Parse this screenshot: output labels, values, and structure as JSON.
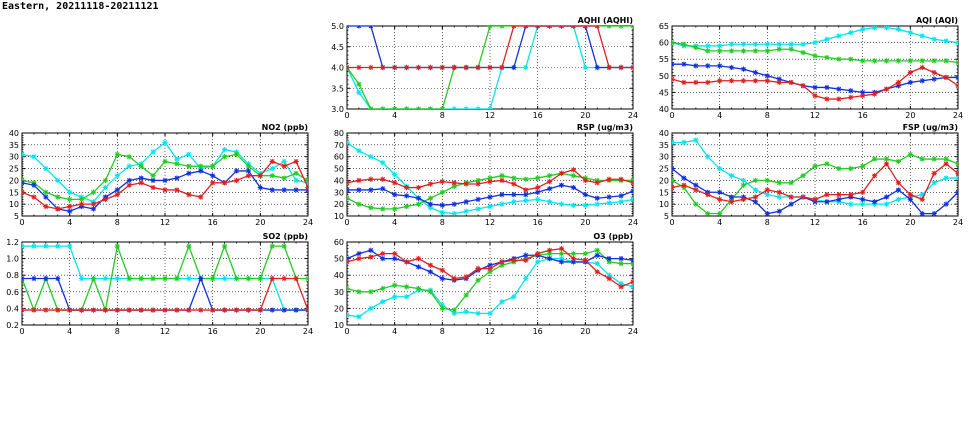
{
  "page_title": "Eastern, 20211118-20211121",
  "colors": {
    "cyan": "#00e5ee",
    "green": "#22cc22",
    "blue": "#1030e0",
    "red": "#e02020"
  },
  "chart_data": [
    {
      "id": "aqhi",
      "type": "line",
      "title": "AQHI (AQHI)",
      "xlim": [
        0,
        24
      ],
      "ylim": [
        3.0,
        5.0
      ],
      "xticks": [
        "0",
        "4",
        "8",
        "12",
        "16",
        "20",
        "24"
      ],
      "yticks": [
        "3.0",
        "3.5",
        "4.0",
        "4.5",
        "5.0"
      ],
      "grid": true,
      "x": [
        0,
        1,
        2,
        3,
        4,
        5,
        6,
        7,
        8,
        9,
        10,
        11,
        12,
        13,
        14,
        15,
        16,
        17,
        18,
        19,
        20,
        21,
        22,
        23,
        24
      ],
      "series": [
        {
          "color": "cyan",
          "values": [
            4,
            3.4,
            3,
            3,
            3,
            3,
            3,
            3,
            3,
            3,
            3,
            3,
            3,
            4,
            4,
            4,
            5,
            5,
            5,
            5,
            4,
            4,
            4,
            4,
            4
          ]
        },
        {
          "color": "green",
          "values": [
            4,
            3.6,
            3,
            3,
            3,
            3,
            3,
            3,
            3,
            4,
            4,
            4,
            5,
            5,
            5,
            5,
            5,
            5,
            5,
            5,
            5,
            5,
            5,
            5,
            5
          ]
        },
        {
          "color": "blue",
          "values": [
            5,
            5,
            5,
            4,
            4,
            4,
            4,
            4,
            4,
            4,
            4,
            4,
            4,
            4,
            4,
            5,
            5,
            5,
            5,
            5,
            5,
            4,
            4,
            4,
            4
          ]
        },
        {
          "color": "red",
          "values": [
            4,
            4,
            4,
            4,
            4,
            4,
            4,
            4,
            4,
            4,
            4,
            4,
            4,
            4,
            5,
            5,
            5,
            5,
            5,
            5,
            5,
            5,
            4,
            4,
            4
          ]
        }
      ]
    },
    {
      "id": "aqi",
      "type": "line",
      "title": "AQI (AQI)",
      "xlim": [
        0,
        24
      ],
      "ylim": [
        40,
        65
      ],
      "xticks": [
        "0",
        "4",
        "8",
        "12",
        "16",
        "20",
        "24"
      ],
      "yticks": [
        "40",
        "45",
        "50",
        "55",
        "60",
        "65"
      ],
      "grid": true,
      "x": [
        0,
        1,
        2,
        3,
        4,
        5,
        6,
        7,
        8,
        9,
        10,
        11,
        12,
        13,
        14,
        15,
        16,
        17,
        18,
        19,
        20,
        21,
        22,
        23,
        24
      ],
      "series": [
        {
          "color": "cyan",
          "values": [
            60,
            59,
            59,
            59,
            59,
            59.5,
            59.5,
            59.5,
            59.5,
            59.5,
            59.5,
            59.5,
            60,
            61,
            62,
            63,
            64,
            64.5,
            64.5,
            64,
            63,
            62,
            61,
            60.5,
            60
          ]
        },
        {
          "color": "green",
          "values": [
            60,
            59.5,
            58.5,
            57.5,
            57.5,
            57.5,
            57.5,
            57.5,
            57.5,
            58,
            58,
            57,
            56,
            55.5,
            55,
            55,
            54.5,
            54.5,
            54.5,
            54.5,
            54.5,
            54.5,
            54.5,
            54.5,
            54
          ]
        },
        {
          "color": "blue",
          "values": [
            53.5,
            53.5,
            53,
            53,
            53,
            52.5,
            52,
            51,
            50,
            49,
            48,
            47,
            46.5,
            46.5,
            46,
            45.5,
            45,
            45,
            46,
            47,
            48,
            48.5,
            49,
            49.5,
            49.5
          ]
        },
        {
          "color": "red",
          "values": [
            49,
            48,
            48,
            48,
            48.5,
            48.5,
            48.5,
            48.5,
            48.5,
            48,
            48,
            47,
            44,
            43,
            43,
            43.5,
            44,
            44.5,
            46,
            48,
            51,
            52.5,
            51,
            49.5,
            47
          ]
        }
      ]
    },
    {
      "id": "no2",
      "type": "line",
      "title": "NO2 (ppb)",
      "xlim": [
        0,
        24
      ],
      "ylim": [
        5,
        40
      ],
      "xticks": [
        "0",
        "4",
        "8",
        "12",
        "16",
        "20",
        "24"
      ],
      "yticks": [
        "5",
        "10",
        "15",
        "20",
        "25",
        "30",
        "35",
        "40"
      ],
      "grid": true,
      "x": [
        0,
        1,
        2,
        3,
        4,
        5,
        6,
        7,
        8,
        9,
        10,
        11,
        12,
        13,
        14,
        15,
        16,
        17,
        18,
        19,
        20,
        21,
        22,
        23,
        24
      ],
      "series": [
        {
          "color": "cyan",
          "values": [
            31,
            30,
            25,
            20,
            15,
            13,
            11,
            17,
            22,
            26,
            27,
            32,
            36,
            29,
            31,
            25,
            26,
            33,
            32,
            27,
            23,
            25,
            28,
            20,
            19
          ]
        },
        {
          "color": "green",
          "values": [
            20,
            19,
            15,
            13,
            12,
            12,
            15,
            20,
            31,
            30,
            26,
            22,
            28,
            27,
            26,
            26,
            26,
            30,
            31,
            26,
            22,
            22,
            21,
            23,
            20
          ]
        },
        {
          "color": "blue",
          "values": [
            19,
            18,
            13,
            8,
            7,
            9,
            8,
            13,
            16,
            20,
            21,
            20,
            20,
            21,
            23,
            24,
            22,
            19,
            24,
            24,
            17,
            16,
            16,
            16,
            16
          ]
        },
        {
          "color": "red",
          "values": [
            15,
            13,
            9,
            8,
            9,
            10,
            10,
            12,
            14,
            18,
            19,
            17,
            16,
            16,
            14,
            13,
            19,
            19,
            20,
            22,
            22,
            28,
            26,
            28,
            17
          ]
        }
      ]
    },
    {
      "id": "rsp",
      "type": "line",
      "title": "RSP (ug/m3)",
      "xlim": [
        0,
        24
      ],
      "ylim": [
        10,
        80
      ],
      "xticks": [
        "0",
        "4",
        "8",
        "12",
        "16",
        "20",
        "24"
      ],
      "yticks": [
        "10",
        "20",
        "30",
        "40",
        "50",
        "60",
        "70",
        "80"
      ],
      "grid": true,
      "x": [
        0,
        1,
        2,
        3,
        4,
        5,
        6,
        7,
        8,
        9,
        10,
        11,
        12,
        13,
        14,
        15,
        16,
        17,
        18,
        19,
        20,
        21,
        22,
        23,
        24
      ],
      "series": [
        {
          "color": "cyan",
          "values": [
            72,
            65,
            60,
            55,
            45,
            35,
            25,
            17,
            13,
            12,
            14,
            16,
            18,
            20,
            22,
            23,
            24,
            22,
            20,
            19,
            19,
            20,
            21,
            22,
            24
          ]
        },
        {
          "color": "green",
          "values": [
            25,
            20,
            17,
            16,
            16,
            18,
            20,
            25,
            30,
            35,
            38,
            40,
            42,
            44,
            42,
            41,
            42,
            44,
            46,
            44,
            42,
            40,
            40,
            40,
            40
          ]
        },
        {
          "color": "blue",
          "values": [
            32,
            32,
            32,
            33,
            28,
            27,
            25,
            20,
            19,
            20,
            22,
            24,
            26,
            28,
            28,
            28,
            30,
            33,
            36,
            34,
            28,
            25,
            26,
            27,
            31
          ]
        },
        {
          "color": "red",
          "values": [
            38,
            40,
            41,
            41,
            38,
            34,
            34,
            37,
            39,
            38,
            37,
            37,
            39,
            40,
            37,
            32,
            34,
            39,
            46,
            49,
            40,
            38,
            41,
            41,
            38
          ]
        }
      ]
    },
    {
      "id": "fsp",
      "type": "line",
      "title": "FSP (ug/m3)",
      "xlim": [
        0,
        24
      ],
      "ylim": [
        5,
        40
      ],
      "xticks": [
        "0",
        "4",
        "8",
        "12",
        "16",
        "20",
        "24"
      ],
      "yticks": [
        "5",
        "10",
        "15",
        "20",
        "25",
        "30",
        "35",
        "40"
      ],
      "grid": true,
      "x": [
        0,
        1,
        2,
        3,
        4,
        5,
        6,
        7,
        8,
        9,
        10,
        11,
        12,
        13,
        14,
        15,
        16,
        17,
        18,
        19,
        20,
        21,
        22,
        23,
        24
      ],
      "series": [
        {
          "color": "cyan",
          "values": [
            36,
            36,
            37,
            30,
            25,
            22,
            20,
            16,
            14,
            13,
            13,
            13,
            12,
            11,
            11,
            10,
            10,
            10,
            10,
            12,
            13,
            14,
            19,
            21,
            21
          ]
        },
        {
          "color": "green",
          "values": [
            20,
            17,
            10,
            6,
            6,
            12,
            18,
            20,
            20,
            19,
            19,
            22,
            26,
            27,
            25,
            25,
            26,
            29,
            29,
            28,
            31,
            29,
            29,
            29,
            27
          ]
        },
        {
          "color": "blue",
          "values": [
            25,
            21,
            18,
            15,
            15,
            13,
            13,
            11,
            6,
            7,
            10,
            13,
            11,
            11,
            12,
            13,
            12,
            11,
            13,
            16,
            12,
            6,
            6,
            10,
            15
          ]
        },
        {
          "color": "red",
          "values": [
            17,
            18,
            16,
            14,
            12,
            11,
            12,
            13,
            16,
            15,
            13,
            13,
            12,
            14,
            14,
            14,
            15,
            22,
            27,
            19,
            14,
            12,
            23,
            27,
            23
          ]
        }
      ]
    },
    {
      "id": "so2",
      "type": "line",
      "title": "SO2 (ppb)",
      "xlim": [
        0,
        24
      ],
      "ylim": [
        0.2,
        1.2
      ],
      "xticks": [
        "0",
        "4",
        "8",
        "12",
        "16",
        "20",
        "24"
      ],
      "yticks": [
        "0.2",
        "0.4",
        "0.6",
        "0.8",
        "1.0",
        "1.2"
      ],
      "grid": true,
      "x": [
        0,
        1,
        2,
        3,
        4,
        5,
        6,
        7,
        8,
        9,
        10,
        11,
        12,
        13,
        14,
        15,
        16,
        17,
        18,
        19,
        20,
        21,
        22,
        23,
        24
      ],
      "series": [
        {
          "color": "cyan",
          "values": [
            1.15,
            1.15,
            1.15,
            1.15,
            1.15,
            0.76,
            0.76,
            0.76,
            0.76,
            0.76,
            0.76,
            0.76,
            0.76,
            0.76,
            0.76,
            0.76,
            0.76,
            0.76,
            0.76,
            0.76,
            0.76,
            0.76,
            0.38,
            0.38,
            0.38
          ]
        },
        {
          "color": "green",
          "values": [
            0.76,
            0.38,
            0.76,
            0.38,
            0.38,
            0.38,
            0.76,
            0.38,
            1.15,
            0.76,
            0.76,
            0.76,
            0.76,
            0.76,
            1.15,
            0.76,
            0.76,
            1.15,
            0.76,
            0.76,
            0.76,
            1.15,
            1.15,
            0.76,
            0.76
          ]
        },
        {
          "color": "blue",
          "values": [
            0.76,
            0.76,
            0.76,
            0.76,
            0.38,
            0.38,
            0.38,
            0.38,
            0.38,
            0.38,
            0.38,
            0.38,
            0.38,
            0.38,
            0.38,
            0.76,
            0.38,
            0.38,
            0.38,
            0.38,
            0.38,
            0.38,
            0.38,
            0.38,
            0.38
          ]
        },
        {
          "color": "red",
          "values": [
            0.38,
            0.38,
            0.38,
            0.38,
            0.38,
            0.38,
            0.38,
            0.38,
            0.38,
            0.38,
            0.38,
            0.38,
            0.38,
            0.38,
            0.38,
            0.38,
            0.38,
            0.38,
            0.38,
            0.38,
            0.38,
            0.76,
            0.76,
            0.76,
            0.38
          ]
        }
      ]
    },
    {
      "id": "o3",
      "type": "line",
      "title": "O3 (ppb)",
      "xlim": [
        0,
        24
      ],
      "ylim": [
        10,
        60
      ],
      "xticks": [
        "0",
        "4",
        "8",
        "12",
        "16",
        "20",
        "24"
      ],
      "yticks": [
        "10",
        "20",
        "30",
        "40",
        "50",
        "60"
      ],
      "grid": true,
      "x": [
        0,
        1,
        2,
        3,
        4,
        5,
        6,
        7,
        8,
        9,
        10,
        11,
        12,
        13,
        14,
        15,
        16,
        17,
        18,
        19,
        20,
        21,
        22,
        23,
        24
      ],
      "series": [
        {
          "color": "cyan",
          "values": [
            16,
            15,
            20,
            24,
            27,
            27,
            31,
            31,
            22,
            17,
            18,
            17,
            17,
            24,
            27,
            38,
            48,
            50,
            50,
            48,
            48,
            47,
            40,
            35,
            33
          ]
        },
        {
          "color": "green",
          "values": [
            32,
            30,
            30,
            32,
            34,
            33,
            32,
            30,
            20,
            19,
            28,
            37,
            42,
            46,
            48,
            50,
            52,
            53,
            53,
            53,
            53,
            55,
            48,
            47,
            47
          ]
        },
        {
          "color": "blue",
          "values": [
            50,
            53,
            55,
            50,
            50,
            48,
            45,
            42,
            38,
            37,
            38,
            43,
            46,
            48,
            50,
            52,
            52,
            50,
            48,
            48,
            48,
            52,
            50,
            50,
            49
          ]
        },
        {
          "color": "red",
          "values": [
            48,
            50,
            51,
            53,
            53,
            48,
            50,
            46,
            43,
            38,
            39,
            44,
            44,
            48,
            49,
            49,
            53,
            55,
            56,
            50,
            49,
            42,
            38,
            33,
            36
          ]
        }
      ]
    }
  ]
}
